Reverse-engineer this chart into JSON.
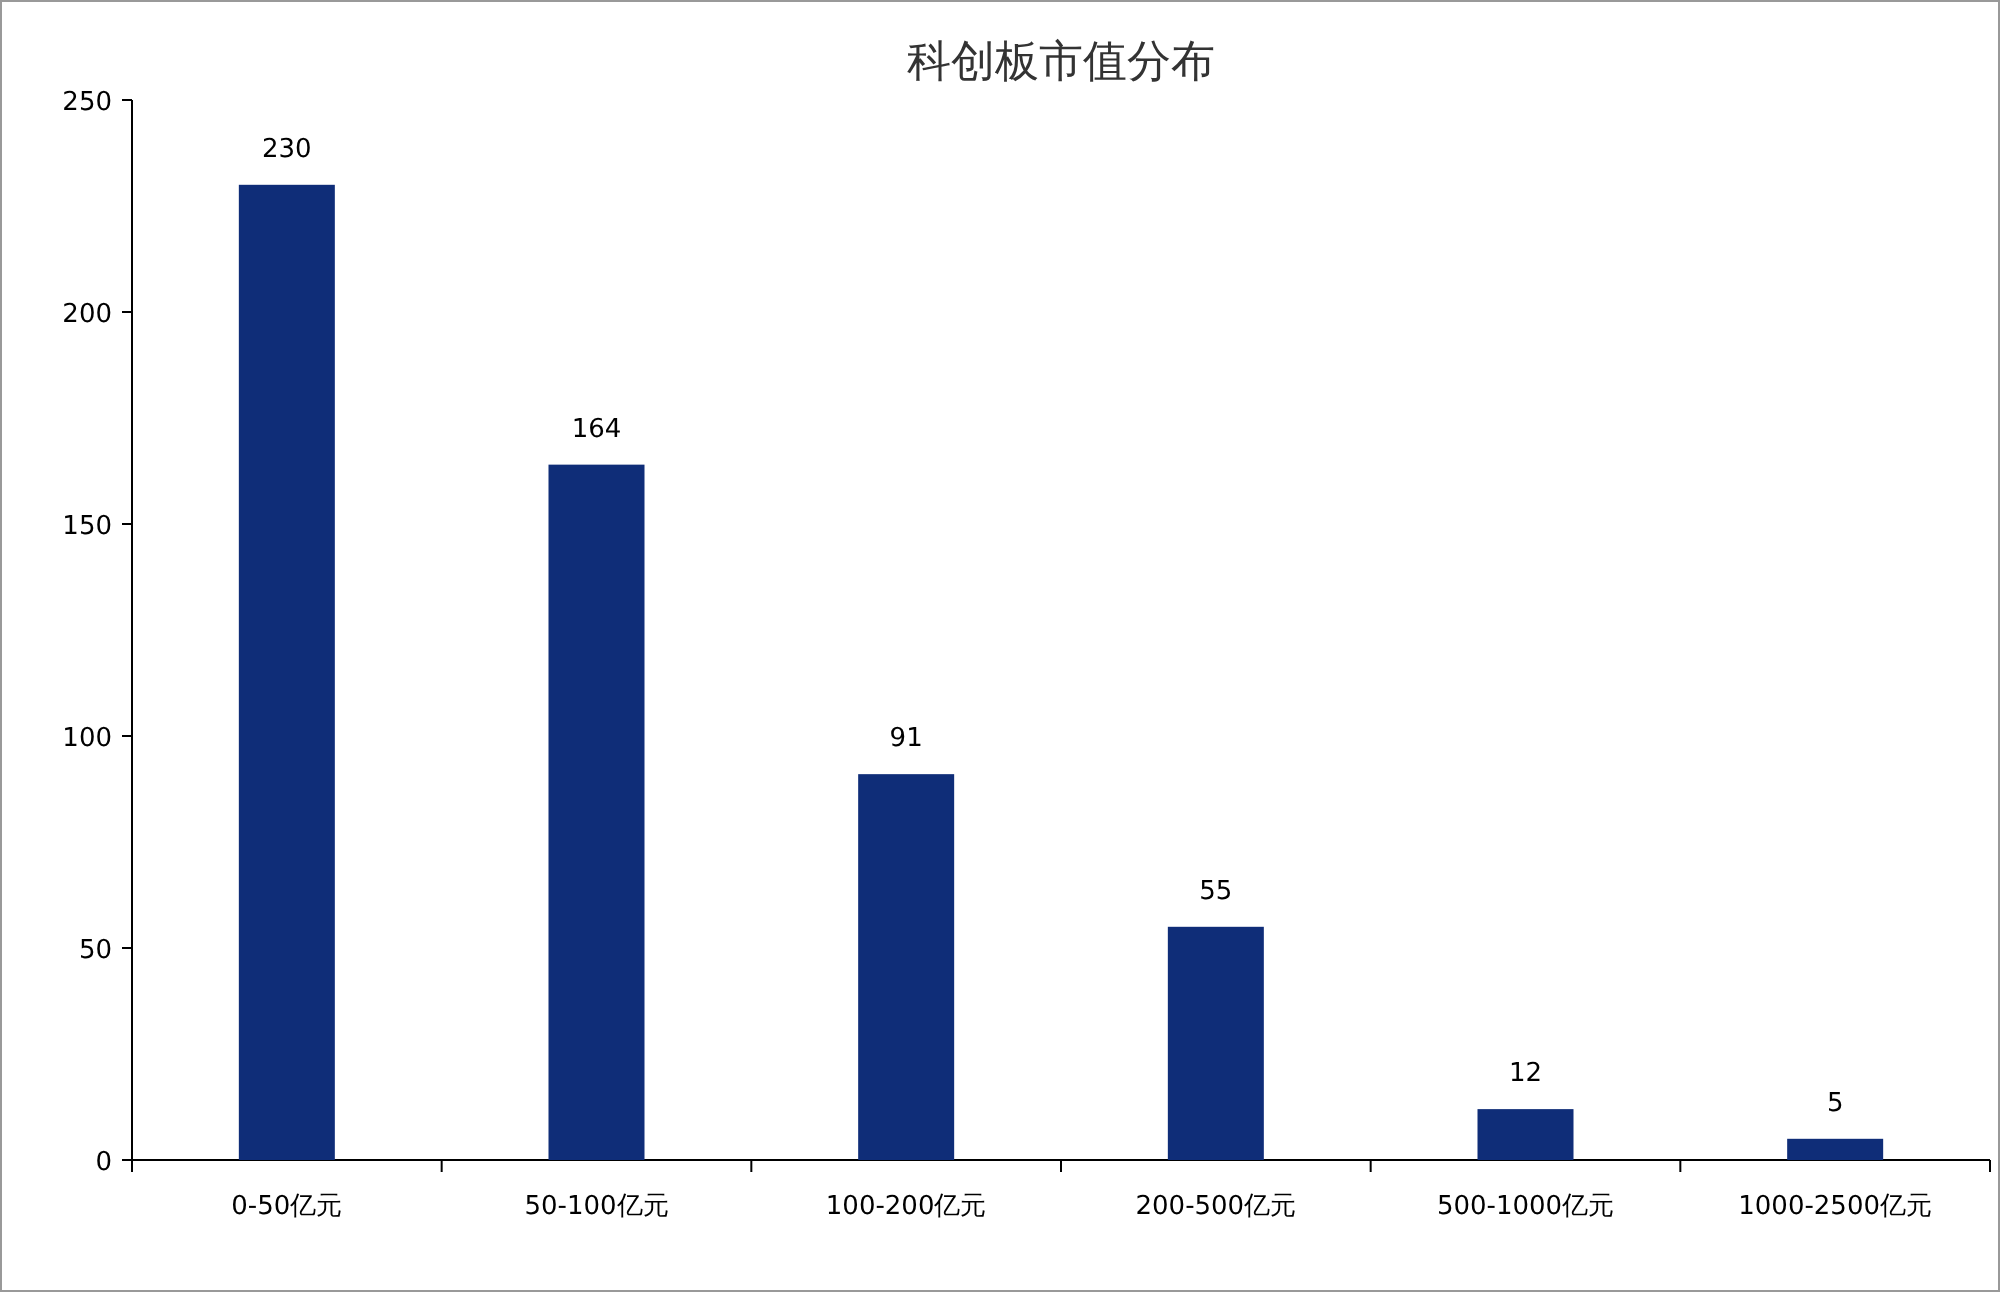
{
  "chart_data": {
    "type": "bar",
    "title": "科创板市值分布",
    "categories": [
      "0-50亿元",
      "50-100亿元",
      "100-200亿元",
      "200-500亿元",
      "500-1000亿元",
      "1000-2500亿元"
    ],
    "values": [
      230,
      164,
      91,
      55,
      12,
      5
    ],
    "color": "#0f2d78",
    "ylim": [
      0,
      250
    ],
    "yticks": [
      0,
      50,
      100,
      150,
      200,
      250
    ],
    "data_labels": true
  }
}
